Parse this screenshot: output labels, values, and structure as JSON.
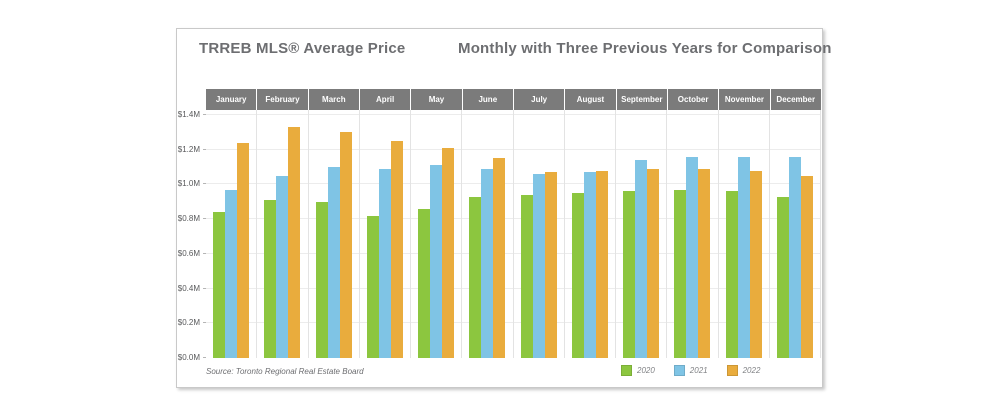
{
  "header": {
    "title_left": "TRREB MLS® Average Price",
    "title_right": "Monthly with Three Previous Years for Comparison"
  },
  "footer": {
    "source": "Source: Toronto Regional Real Estate Board"
  },
  "colors": {
    "series_2020": "#8CC63F",
    "series_2021": "#7FC4E5",
    "series_2022": "#E9AC3D",
    "month_band": "#7B7B7B",
    "title_text": "#6D6E71"
  },
  "chart_data": {
    "type": "bar",
    "title": "TRREB MLS® Average Price",
    "subtitle": "Monthly with Three Previous Years for Comparison",
    "categories": [
      "January",
      "February",
      "March",
      "April",
      "May",
      "June",
      "July",
      "August",
      "September",
      "October",
      "November",
      "December"
    ],
    "series": [
      {
        "name": "2020",
        "color": "#8CC63F",
        "values": [
          0.84,
          0.91,
          0.9,
          0.82,
          0.86,
          0.93,
          0.94,
          0.95,
          0.96,
          0.97,
          0.96,
          0.93
        ]
      },
      {
        "name": "2021",
        "color": "#7FC4E5",
        "values": [
          0.97,
          1.05,
          1.1,
          1.09,
          1.11,
          1.09,
          1.06,
          1.07,
          1.14,
          1.16,
          1.16,
          1.16
        ]
      },
      {
        "name": "2022",
        "color": "#E9AC3D",
        "values": [
          1.24,
          1.33,
          1.3,
          1.25,
          1.21,
          1.15,
          1.07,
          1.08,
          1.09,
          1.09,
          1.08,
          1.05
        ]
      }
    ],
    "unit": "millions CAD",
    "xlabel": "",
    "ylabel": "",
    "ylim": [
      0,
      1.4
    ],
    "y_tick_step": 0.2,
    "y_tick_labels": [
      "$0.0M",
      "$0.2M",
      "$0.4M",
      "$0.6M",
      "$0.8M",
      "$1.0M",
      "$1.2M",
      "$1.4M"
    ],
    "grid": "faint horizontal lines at each tick",
    "legend_position": "bottom-right"
  }
}
